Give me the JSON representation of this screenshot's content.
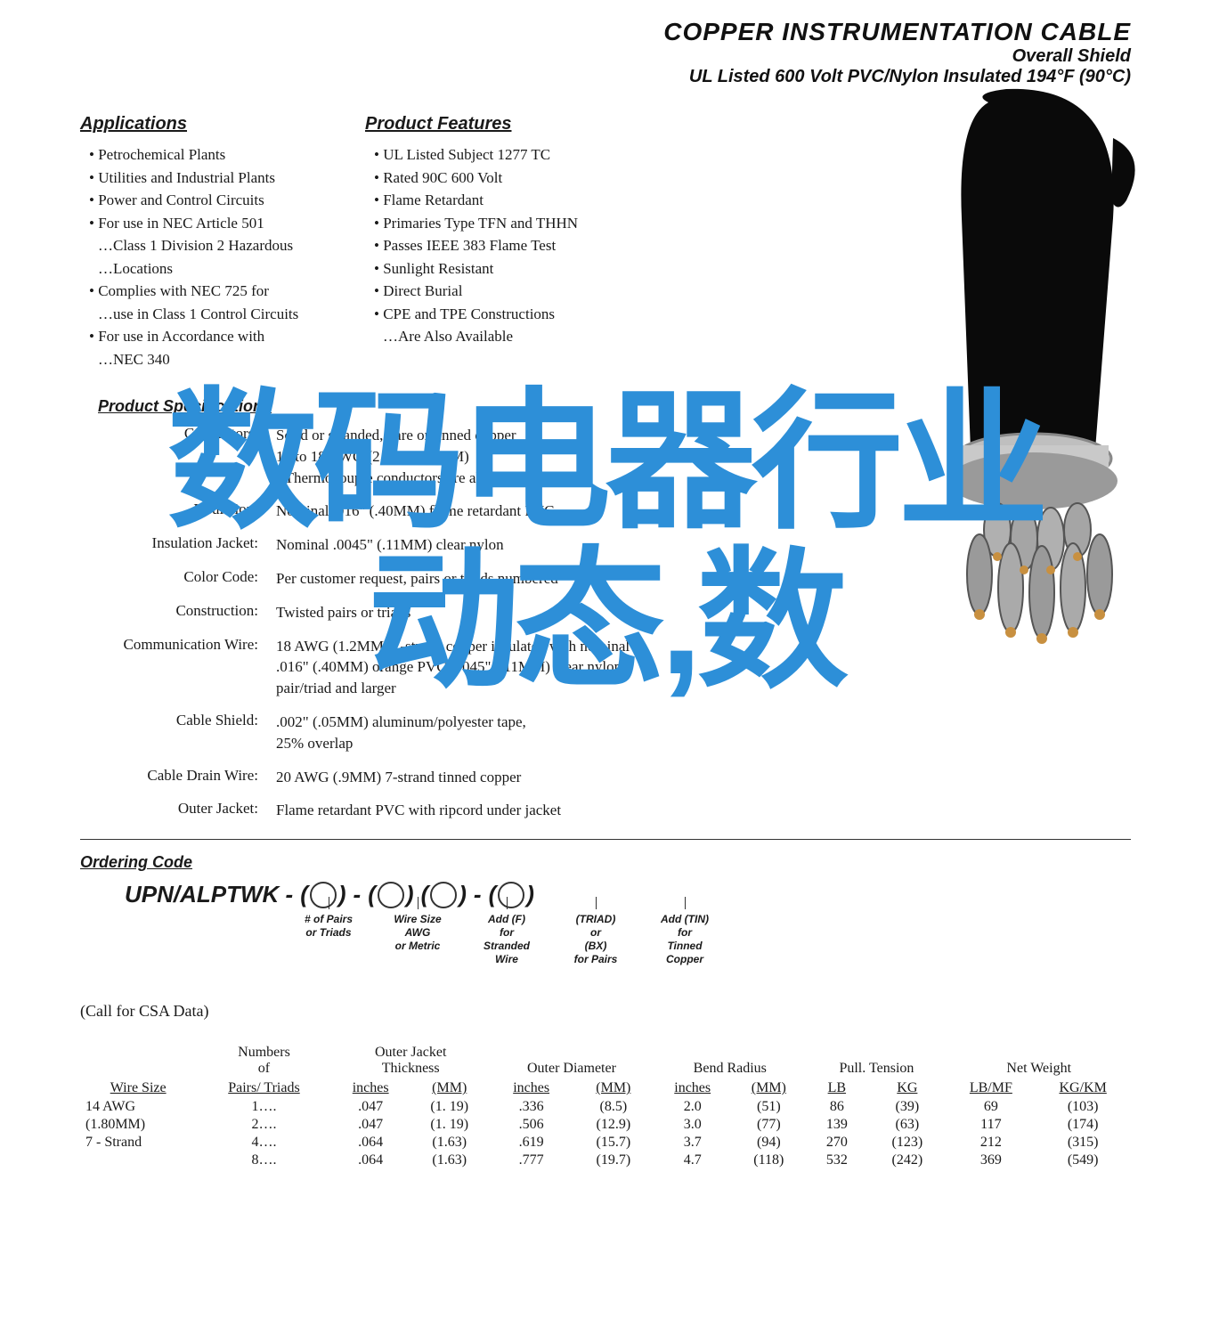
{
  "header": {
    "title": "COPPER INSTRUMENTATION CABLE",
    "subtitle": "Overall Shield",
    "desc": "UL Listed 600 Volt PVC/Nylon Insulated 194°F (90°C)"
  },
  "applications": {
    "title": "Applications",
    "items": [
      "Petrochemical Plants",
      "Utilities and Industrial Plants",
      "Power and Control Circuits",
      "For use in NEC Article 501",
      "…Class 1 Division 2 Hazardous",
      "…Locations",
      "Complies with NEC 725 for",
      "…use in Class 1 Control Circuits",
      "For use in Accordance with",
      "…NEC 340"
    ]
  },
  "features": {
    "title": "Product Features",
    "items": [
      "UL Listed Subject 1277 TC",
      "Rated 90C 600 Volt",
      "Flame Retardant",
      "Primaries Type TFN and THHN",
      "Passes IEEE 383 Flame Test",
      "Sunlight Resistant",
      "Direct Burial",
      "CPE and TPE Constructions",
      "…Are Also Available"
    ]
  },
  "specs": {
    "title": "Product Specifications",
    "rows": [
      {
        "label": "Conductors:",
        "value": "Solid or stranded, bare or tinned copper\n12 to 18 AWG (2.44 to 1.2MM)\n( Thermocouple conductors are also available)"
      },
      {
        "label": "Insulation:",
        "value": "Nominal .016\" (.40MM) flame retardant PVC"
      },
      {
        "label": "Insulation Jacket:",
        "value": "Nominal .0045\" (.11MM) clear nylon"
      },
      {
        "label": "Color Code:",
        "value": "Per customer request, pairs or triads numbered"
      },
      {
        "label": "Construction:",
        "value": "Twisted pairs or triads"
      },
      {
        "label": "Communication Wire:",
        "value": "18 AWG (1.2MM) 7-strand copper insulated with nominal\n.016\" (.40MM) orange PVC/.0045\" (.11MM) clear nylon\npair/triad and larger"
      },
      {
        "label": "Cable Shield:",
        "value": ".002\" (.05MM) aluminum/polyester tape,\n25% overlap"
      },
      {
        "label": "Cable Drain Wire:",
        "value": "20 AWG (.9MM) 7-strand tinned copper"
      },
      {
        "label": "Outer Jacket:",
        "value": "Flame retardant PVC with ripcord under jacket"
      }
    ]
  },
  "ordering": {
    "title": "Ordering Code",
    "prefix": "UPN/ALPTWK -",
    "slots": [
      {
        "label": "# of Pairs\nor Triads"
      },
      {
        "label": "Wire Size\nAWG\nor Metric"
      },
      {
        "label": "Add (F)\nfor\nStranded\nWire"
      },
      {
        "label": "(TRIAD)\nor\n(BX)\nfor Pairs"
      },
      {
        "label": "Add (TIN)\nfor\nTinned\nCopper"
      }
    ]
  },
  "csa_note": "(Call for CSA Data)",
  "table": {
    "group_headers": [
      "",
      "Numbers\nof",
      "Outer Jacket\nThickness",
      "Outer Diameter",
      "Bend Radius",
      "Pull. Tension",
      "Net Weight"
    ],
    "sub_headers": [
      "Wire Size",
      "Pairs/ Triads",
      "inches",
      "(MM)",
      "inches",
      "(MM)",
      "inches",
      "(MM)",
      "LB",
      "KG",
      "LB/MF",
      "KG/KM"
    ],
    "rows": [
      [
        "14 AWG",
        "1….",
        ".047",
        "(1. 19)",
        ".336",
        "(8.5)",
        "2.0",
        "(51)",
        "86",
        "(39)",
        "69",
        "(103)"
      ],
      [
        "(1.80MM)",
        "2….",
        ".047",
        "(1. 19)",
        ".506",
        "(12.9)",
        "3.0",
        "(77)",
        "139",
        "(63)",
        "117",
        "(174)"
      ],
      [
        "7 - Strand",
        "4….",
        ".064",
        "(1.63)",
        ".619",
        "(15.7)",
        "3.7",
        "(94)",
        "270",
        "(123)",
        "212",
        "(315)"
      ],
      [
        "",
        "8….",
        ".064",
        "(1.63)",
        ".777",
        "(19.7)",
        "4.7",
        "(118)",
        "532",
        "(242)",
        "369",
        "(549)"
      ]
    ]
  },
  "overlay": {
    "line1": "数码电器行业",
    "line2": "动态,数"
  },
  "colors": {
    "overlay_blue": "#2d8fd8",
    "text": "#1a1a1a"
  }
}
